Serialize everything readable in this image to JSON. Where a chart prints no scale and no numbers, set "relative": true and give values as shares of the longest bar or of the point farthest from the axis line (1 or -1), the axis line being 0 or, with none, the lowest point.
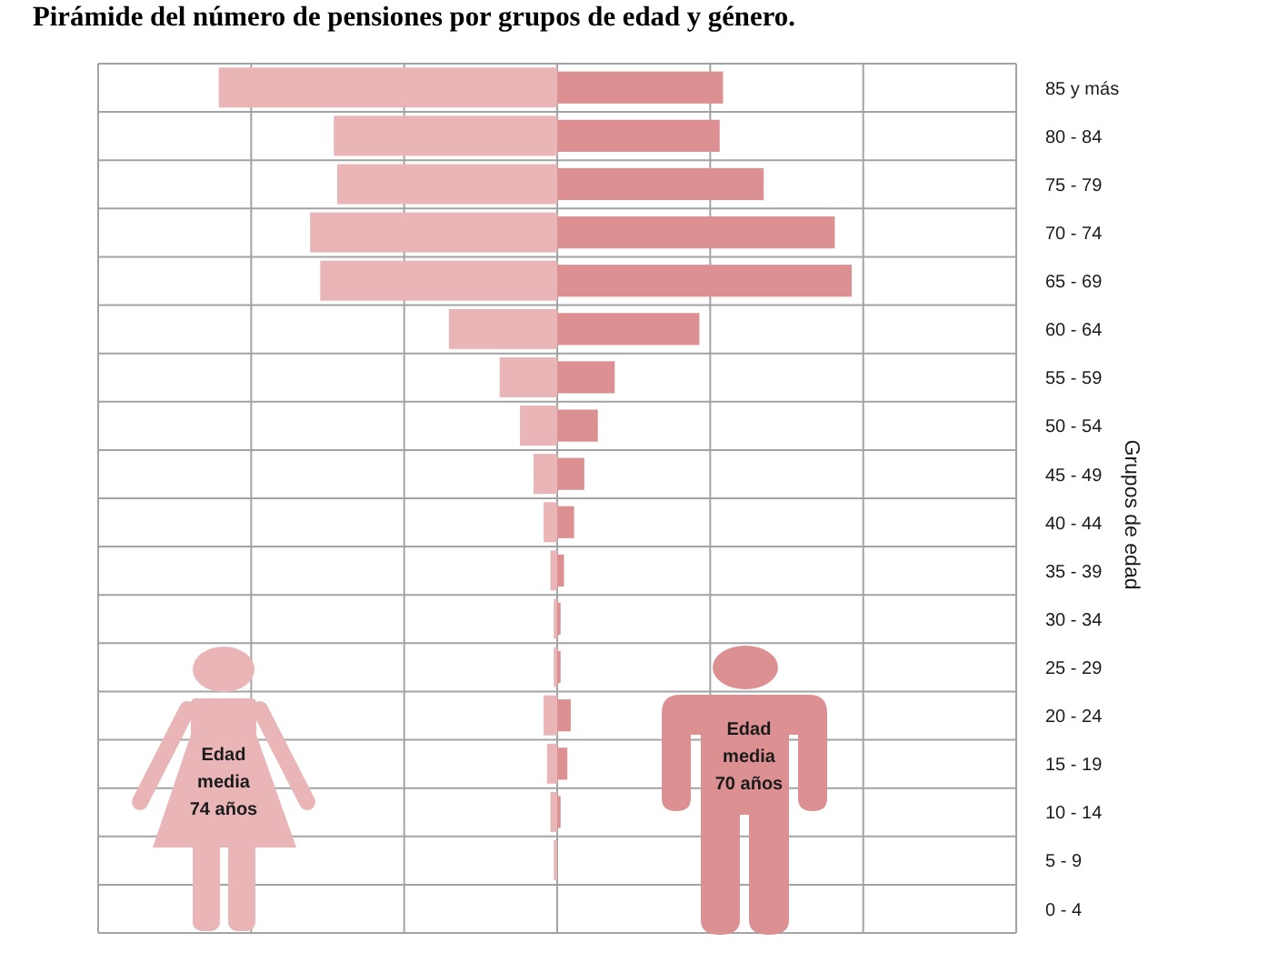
{
  "chart_data": {
    "type": "bar",
    "orientation": "horizontal",
    "relative": true,
    "title": "Pirámide del número de pensiones por grupos de edad y género.",
    "ylabel": "Grupos de edad",
    "categories": [
      "85 y más",
      "80 - 84",
      "75 - 79",
      "70 - 74",
      "65 - 69",
      "60 - 64",
      "55 - 59",
      "50 - 54",
      "45 - 49",
      "40 - 44",
      "35 - 39",
      "30 - 34",
      "25 - 29",
      "20 - 24",
      "15 - 19",
      "10 - 14",
      "5 - 9",
      "0 - 4"
    ],
    "series": [
      {
        "color": "#e9b5b7",
        "values": [
          -1,
          -0.66,
          -0.65,
          -0.73,
          -0.7,
          -0.32,
          -0.17,
          -0.11,
          -0.07,
          -0.04,
          -0.02,
          -0.01,
          -0.01,
          -0.04,
          -0.03,
          -0.02,
          -0.01,
          0
        ]
      },
      {
        "color": "#dc9092",
        "values": [
          0.49,
          0.48,
          0.61,
          0.82,
          0.87,
          0.42,
          0.17,
          0.12,
          0.08,
          0.05,
          0.02,
          0.01,
          0.01,
          0.04,
          0.03,
          0.01,
          0,
          0
        ]
      }
    ],
    "annotations": [
      "Edad media 74 años",
      "Edad media 70 años"
    ],
    "grid": true
  }
}
